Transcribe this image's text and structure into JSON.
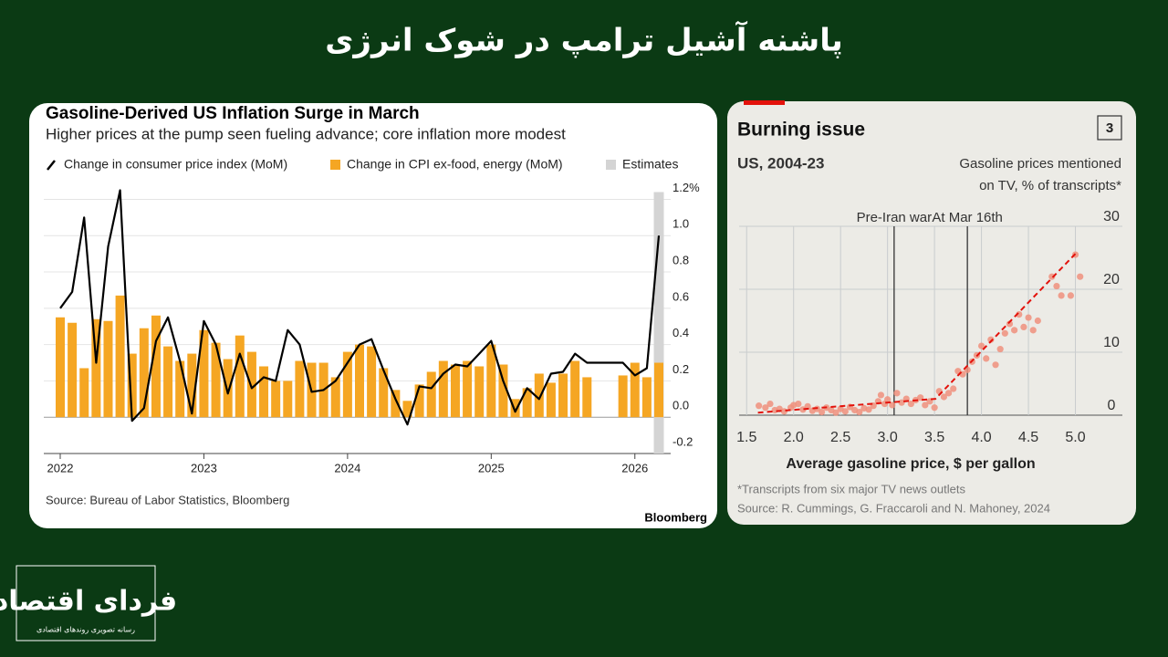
{
  "header": {
    "title": "پاشنه آشیل ترامپ در شوک انرژی"
  },
  "logo": {
    "name": "فردای اقتصاد",
    "tagline": "رسانه تصویری روندهای اقتصادی"
  },
  "chart_data": [
    {
      "type": "bar",
      "title": "Gasoline-Derived US Inflation Surge in March",
      "subtitle": "Higher prices at the pump seen fueling advance; core inflation more modest",
      "categories": [
        "2022",
        null,
        null,
        null,
        null,
        null,
        null,
        null,
        null,
        null,
        null,
        null,
        "2023",
        null,
        null,
        null,
        null,
        null,
        null,
        null,
        null,
        null,
        null,
        null,
        "2024",
        null,
        null,
        null,
        null,
        null,
        null,
        null,
        null,
        null,
        null,
        null,
        "2025",
        null,
        null,
        null,
        null,
        null,
        null,
        null,
        null,
        null,
        null,
        null,
        "2026",
        null,
        null
      ],
      "series": [
        {
          "name": "Change in consumer price index (MoM)",
          "color": "#000000",
          "kind": "line",
          "values": [
            0.6,
            0.69,
            1.1,
            0.3,
            0.94,
            1.25,
            -0.02,
            0.05,
            0.42,
            0.55,
            0.31,
            0.02,
            0.53,
            0.4,
            0.13,
            0.35,
            0.16,
            0.22,
            0.2,
            0.48,
            0.4,
            0.14,
            0.15,
            0.2,
            0.3,
            0.4,
            0.43,
            0.26,
            0.1,
            -0.04,
            0.17,
            0.16,
            0.24,
            0.29,
            0.28,
            0.35,
            0.42,
            0.2,
            0.03,
            0.16,
            0.1,
            0.24,
            0.25,
            0.35,
            0.3,
            0.3,
            0.3,
            0.3,
            0.23,
            0.27,
            1.0
          ]
        },
        {
          "name": "Change in CPI ex-food, energy (MoM)",
          "color": "#f5a623",
          "kind": "bar",
          "values": [
            0.55,
            0.52,
            0.27,
            0.54,
            0.53,
            0.67,
            0.35,
            0.49,
            0.56,
            0.39,
            0.31,
            0.35,
            0.48,
            0.41,
            0.32,
            0.45,
            0.36,
            0.28,
            0.2,
            0.2,
            0.31,
            0.3,
            0.3,
            0.22,
            0.36,
            0.4,
            0.39,
            0.27,
            0.15,
            0.09,
            0.18,
            0.25,
            0.31,
            0.29,
            0.31,
            0.28,
            0.4,
            0.29,
            0.1,
            0.16,
            0.24,
            0.19,
            0.24,
            0.31,
            0.22,
            null,
            null,
            0.23,
            0.3,
            0.22,
            0.3
          ]
        },
        {
          "name": "Estimates",
          "color": "#d4d4d4",
          "kind": "shade",
          "values": [
            null,
            null,
            null,
            null,
            null,
            null,
            null,
            null,
            null,
            null,
            null,
            null,
            null,
            null,
            null,
            null,
            null,
            null,
            null,
            null,
            null,
            null,
            null,
            null,
            null,
            null,
            null,
            null,
            null,
            null,
            null,
            null,
            null,
            null,
            null,
            null,
            null,
            null,
            null,
            null,
            null,
            null,
            null,
            null,
            null,
            null,
            null,
            null,
            null,
            null,
            1.24
          ]
        }
      ],
      "ylim": [
        -0.2,
        1.25
      ],
      "yticks": [
        -0.2,
        {
          "value": 0,
          "label": "0.0"
        },
        0.2,
        0.4,
        0.6,
        0.8,
        {
          "value": 1,
          "label": "1.0"
        },
        {
          "value": 1.2,
          "label": "1.2%"
        }
      ],
      "grid": true,
      "source": "Source: Bureau of Labor Statistics, Bloomberg",
      "brand": "Bloomberg"
    },
    {
      "type": "scatter",
      "title": "Burning issue",
      "badge": "3",
      "subtitle": "US, 2004-23",
      "ylabel": [
        "Gasoline prices mentioned",
        "on TV, % of transcripts*"
      ],
      "xlabel": "Average gasoline price, $ per gallon",
      "color": "#f0907c",
      "x": [
        1.63,
        1.7,
        1.75,
        1.8,
        1.85,
        1.9,
        1.97,
        2.0,
        2.05,
        2.1,
        2.15,
        2.2,
        2.25,
        2.3,
        2.35,
        2.4,
        2.45,
        2.5,
        2.55,
        2.6,
        2.65,
        2.7,
        2.75,
        2.8,
        2.85,
        2.9,
        2.93,
        2.97,
        3.0,
        3.05,
        3.1,
        3.15,
        3.2,
        3.25,
        3.3,
        3.35,
        3.4,
        3.45,
        3.5,
        3.55,
        3.6,
        3.65,
        3.7,
        3.75,
        3.8,
        3.85,
        3.9,
        3.95,
        4.0,
        4.05,
        4.1,
        4.15,
        4.2,
        4.25,
        4.3,
        4.35,
        4.4,
        4.45,
        4.5,
        4.55,
        4.6,
        4.75,
        4.8,
        4.85,
        4.95,
        5.0,
        5.05
      ],
      "values": [
        1.5,
        1.2,
        1.8,
        0.8,
        1.0,
        0.6,
        1.2,
        1.6,
        1.8,
        0.9,
        1.4,
        0.7,
        1.0,
        0.5,
        1.2,
        0.8,
        0.4,
        1.0,
        0.6,
        1.3,
        0.8,
        0.5,
        1.1,
        0.9,
        1.5,
        2.2,
        3.2,
        1.8,
        2.5,
        1.6,
        3.5,
        2.0,
        2.6,
        1.8,
        2.4,
        2.8,
        1.6,
        2.2,
        1.2,
        3.8,
        2.9,
        3.5,
        4.2,
        7.0,
        6.5,
        7.2,
        8.5,
        9.5,
        11.0,
        9.0,
        12.0,
        8.0,
        10.5,
        13.0,
        14.5,
        13.5,
        16.0,
        14.0,
        15.5,
        13.5,
        15.0,
        22.0,
        20.5,
        19.0,
        19.0,
        25.5,
        22.0
      ],
      "trend": {
        "color": "#e3120b",
        "x": [
          1.62,
          3.51,
          5.01
        ],
        "values": [
          0.4,
          2.6,
          25.8
        ]
      },
      "annotations": [
        {
          "text": "Pre-Iran war",
          "x": 3.07
        },
        {
          "text": "At Mar 16th",
          "x": 3.85
        }
      ],
      "xlim": [
        1.42,
        5.5
      ],
      "ylim": [
        0,
        30
      ],
      "xticks": [
        1.5,
        {
          "value": 2,
          "label": "2.0"
        },
        2.5,
        {
          "value": 3,
          "label": "3.0"
        },
        3.5,
        {
          "value": 4,
          "label": "4.0"
        },
        4.5,
        {
          "value": 5,
          "label": "5.0"
        }
      ],
      "yticks": [
        0,
        10,
        20,
        30
      ],
      "grid": true,
      "footnote": "*Transcripts from six major TV news outlets",
      "source": "Source: R. Cummings, G. Fraccaroli and N. Mahoney, 2024"
    }
  ]
}
